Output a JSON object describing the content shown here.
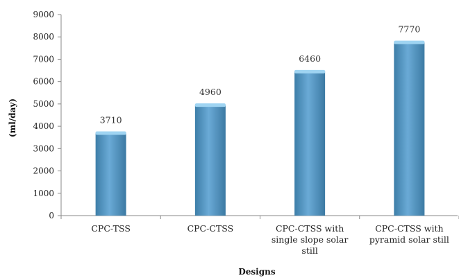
{
  "chart_data": {
    "type": "bar",
    "categories": [
      [
        "CPC-TSS"
      ],
      [
        "CPC-CTSS"
      ],
      [
        "CPC-CTSS with",
        "single slope solar",
        "still"
      ],
      [
        "CPC-CTSS with",
        "pyramid solar still"
      ]
    ],
    "values": [
      3710,
      4960,
      6460,
      7770
    ],
    "data_labels": [
      "3710",
      "4960",
      "6460",
      "7770"
    ],
    "xlabel": "Designs",
    "ylabel": "(ml/day)",
    "ylim": [
      0,
      9000
    ],
    "yticks": [
      "0",
      "1000",
      "2000",
      "3000",
      "4000",
      "5000",
      "6000",
      "7000",
      "8000",
      "9000"
    ],
    "grid": false,
    "legend": "none",
    "colors": {
      "bar_dark": "#3d7ea8",
      "bar_light": "#6aaad6",
      "bar_top": "#9fd4f2",
      "axis": "#8a8a8a"
    }
  }
}
